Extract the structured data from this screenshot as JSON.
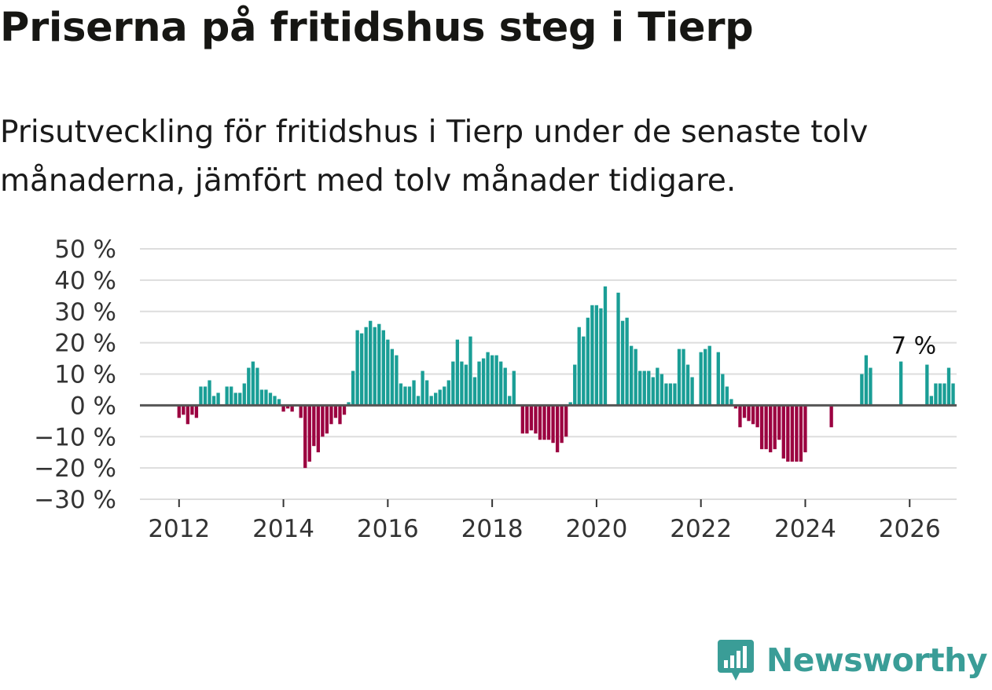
{
  "title": "Priserna på fritidshus steg i Tierp",
  "subtitle": "Prisutveckling för fritidshus i Tierp under de senaste tolv månaderna, jämfört med tolv månader tidigare.",
  "brand": {
    "name": "Newsworthy",
    "color": "#3a9d97"
  },
  "colors": {
    "positive": "#1a9e96",
    "negative": "#9b0040",
    "grid": "#dddddd",
    "zero_line": "#555555",
    "text": "#333333"
  },
  "chart_data": {
    "type": "bar",
    "title": "Priserna på fritidshus steg i Tierp",
    "xlabel": "",
    "ylabel": "",
    "ylim": [
      -30,
      50
    ],
    "yticks": [
      -30,
      -20,
      -10,
      0,
      10,
      20,
      30,
      40,
      50
    ],
    "ytick_labels": [
      "−30 %",
      "−20 %",
      "−10 %",
      "0 %",
      "10 %",
      "20 %",
      "30 %",
      "40 %",
      "50 %"
    ],
    "xlim": [
      2011.25,
      2026.9
    ],
    "xticks": [
      2012,
      2014,
      2016,
      2018,
      2020,
      2022,
      2024,
      2026
    ],
    "xtick_labels": [
      "2012",
      "2014",
      "2016",
      "2018",
      "2020",
      "2022",
      "2024",
      "2026"
    ],
    "bar_width_years": 0.065,
    "series": [
      {
        "name": "Prisutveckling",
        "start": 2012.0,
        "step": 0.08333,
        "values": [
          -4,
          -3,
          -6,
          -3,
          -4,
          6,
          6,
          8,
          3,
          4,
          0,
          6,
          6,
          4,
          4,
          7,
          12,
          14,
          12,
          5,
          5,
          4,
          3,
          2,
          -2,
          -1,
          -2,
          0,
          -4,
          -20,
          -18,
          -13,
          -15,
          -10,
          -9,
          -6,
          -4,
          -6,
          -3,
          1,
          11,
          24,
          23,
          25,
          27,
          25,
          26,
          24,
          21,
          18,
          16,
          7,
          6,
          6,
          8,
          3,
          11,
          8,
          3,
          4,
          5,
          6,
          8,
          14,
          21,
          14,
          13,
          22,
          9,
          14,
          15,
          17,
          16,
          16,
          14,
          12,
          3,
          11,
          0,
          -9,
          -9,
          -8,
          -9,
          -11,
          -11,
          -11,
          -12,
          -15,
          -12,
          -10,
          1,
          13,
          25,
          22,
          28,
          32,
          32,
          31,
          38,
          0,
          0,
          36,
          27,
          28,
          19,
          18,
          11,
          11,
          11,
          9,
          12,
          10,
          7,
          7,
          7,
          18,
          18,
          13,
          9,
          0,
          17,
          18,
          19,
          0,
          17,
          10,
          6,
          2,
          -1,
          -7,
          -4,
          -5,
          -6,
          -7,
          -14,
          -14,
          -15,
          -14,
          -11,
          -17,
          -18,
          -18,
          -18,
          -18,
          -15,
          0,
          0,
          0,
          0,
          0,
          -7,
          0,
          0,
          0,
          0,
          0,
          0,
          10,
          16,
          12,
          0,
          0,
          0,
          0,
          0,
          0,
          14,
          0,
          0,
          0,
          0,
          0,
          13,
          3,
          7,
          7,
          7,
          12,
          7
        ]
      }
    ],
    "annotations": [
      {
        "label": "7 %",
        "x": 2026.08,
        "y": 7
      }
    ]
  }
}
